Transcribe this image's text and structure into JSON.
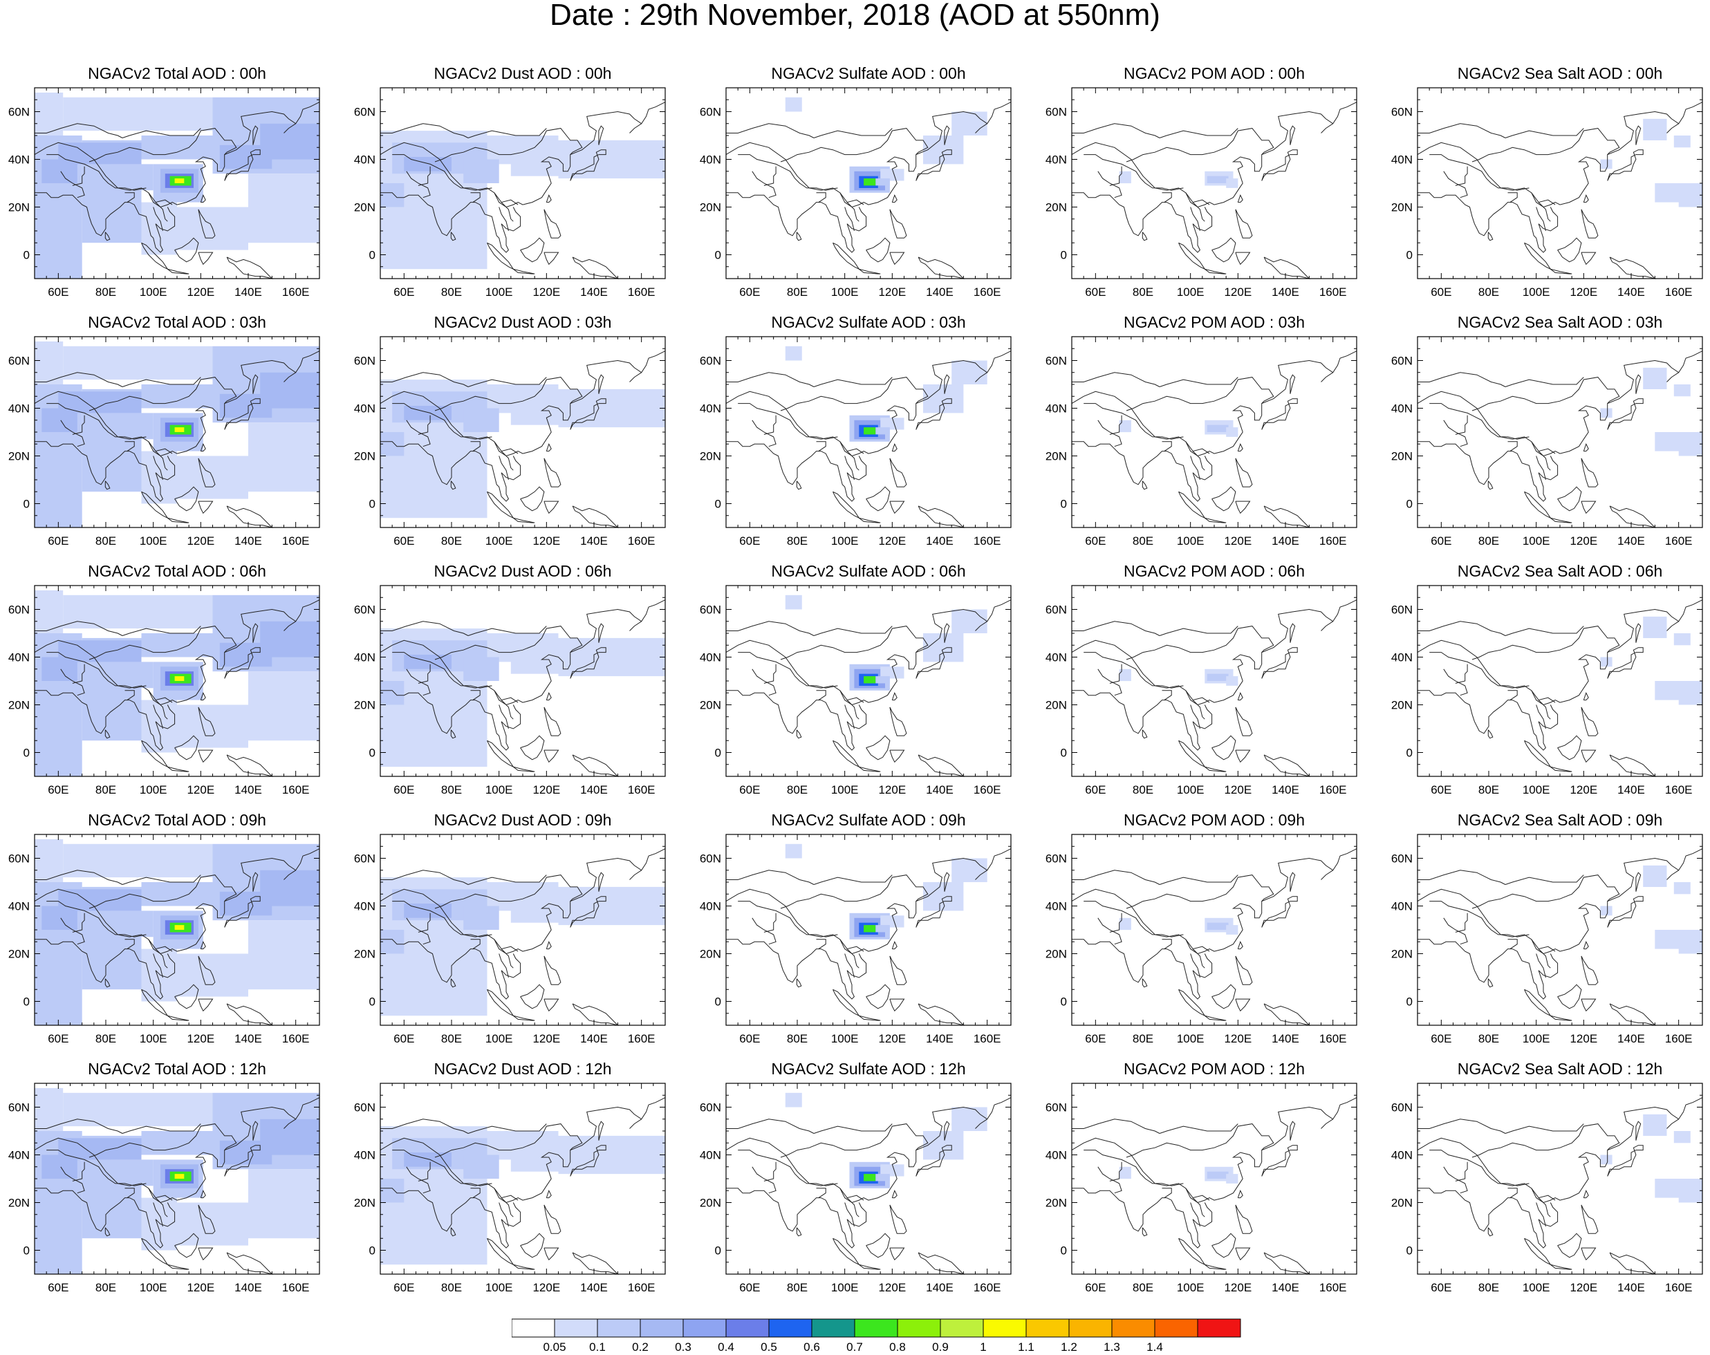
{
  "title": "Date : 29th November, 2018 (AOD at 550nm)",
  "lat_labels": [
    "60N",
    "40N",
    "20N",
    "0"
  ],
  "lon_labels": [
    "60E",
    "80E",
    "100E",
    "120E",
    "140E",
    "160E"
  ],
  "panels": [
    [
      "NGACv2 Total AOD : 00h",
      "NGACv2 Dust AOD : 00h",
      "NGACv2 Sulfate AOD : 00h",
      "NGACv2 POM AOD : 00h",
      "NGACv2 Sea Salt AOD : 00h"
    ],
    [
      "NGACv2 Total AOD : 03h",
      "NGACv2 Dust AOD : 03h",
      "NGACv2 Sulfate AOD : 03h",
      "NGACv2 POM AOD : 03h",
      "NGACv2 Sea Salt AOD : 03h"
    ],
    [
      "NGACv2 Total AOD : 06h",
      "NGACv2 Dust AOD : 06h",
      "NGACv2 Sulfate AOD : 06h",
      "NGACv2 POM AOD : 06h",
      "NGACv2 Sea Salt AOD : 06h"
    ],
    [
      "NGACv2 Total AOD : 09h",
      "NGACv2 Dust AOD : 09h",
      "NGACv2 Sulfate AOD : 09h",
      "NGACv2 POM AOD : 09h",
      "NGACv2 Sea Salt  AOD : 09h"
    ],
    [
      "NGACv2 Total AOD  : 12h",
      "NGACv2 Dust AOD : 12h",
      "NGACv2 Sulfate AOD : 12h",
      "NGACv2 POM  AOD : 12h",
      "NGACv2 Sea Salt  AOD : 12h"
    ]
  ],
  "colorbar": {
    "colors": [
      "#ffffff",
      "#d2dcfa",
      "#bccbf7",
      "#a6b9f3",
      "#8ea4f1",
      "#6b7ee9",
      "#1e64f0",
      "#14968c",
      "#3ce61e",
      "#8cf00a",
      "#bef03c",
      "#fafa00",
      "#fac800",
      "#fab400",
      "#fa8c00",
      "#fa6400",
      "#f01414"
    ],
    "labels": [
      "0.05",
      "0.1",
      "0.2",
      "0.3",
      "0.4",
      "0.5",
      "0.6",
      "0.7",
      "0.8",
      "0.9",
      "1",
      "1.1",
      "1.2",
      "1.3",
      "1.4"
    ]
  }
}
